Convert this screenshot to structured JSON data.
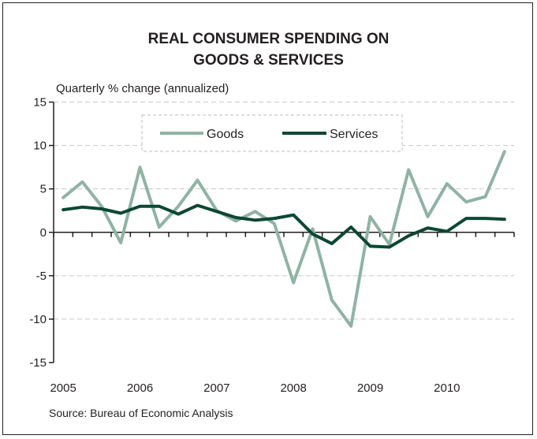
{
  "chart_data": {
    "type": "line",
    "title_lines": [
      "REAL CONSUMER SPENDING ON",
      "GOODS & SERVICES"
    ],
    "ylabel": "Quarterly % change (annualized)",
    "source": "Source: Bureau of Economic Analysis",
    "ylim": [
      -15,
      15
    ],
    "yticks": [
      -15,
      -10,
      -5,
      0,
      5,
      10,
      15
    ],
    "ytick_labels": [
      "-15",
      "-10",
      "-5",
      "0",
      "5",
      "10",
      "15"
    ],
    "year_labels": [
      "2005",
      "2006",
      "2007",
      "2008",
      "2009",
      "2010"
    ],
    "quarters": [
      "2005Q1",
      "2005Q2",
      "2005Q3",
      "2005Q4",
      "2006Q1",
      "2006Q2",
      "2006Q3",
      "2006Q4",
      "2007Q1",
      "2007Q2",
      "2007Q3",
      "2007Q4",
      "2008Q1",
      "2008Q2",
      "2008Q3",
      "2008Q4",
      "2009Q1",
      "2009Q2",
      "2009Q3",
      "2009Q4",
      "2010Q1",
      "2010Q2",
      "2010Q3",
      "2010Q4"
    ],
    "grid": "horizontal-dashed",
    "legend_position": "top-center",
    "series": [
      {
        "name": "Goods",
        "color": "#8fb3a4",
        "values": [
          4.0,
          5.8,
          3.0,
          -1.2,
          7.5,
          0.6,
          3.0,
          6.0,
          2.5,
          1.3,
          2.4,
          1.0,
          -5.8,
          0.4,
          -7.8,
          -10.8,
          1.8,
          -1.4,
          7.2,
          1.8,
          5.6,
          3.5,
          4.1,
          9.3
        ]
      },
      {
        "name": "Services",
        "color": "#0c4735",
        "values": [
          2.6,
          2.9,
          2.7,
          2.2,
          3.0,
          3.0,
          2.1,
          3.1,
          2.4,
          1.7,
          1.4,
          1.6,
          2.0,
          -0.2,
          -1.3,
          0.6,
          -1.6,
          -1.7,
          -0.4,
          0.5,
          0.1,
          1.6,
          1.6,
          1.5
        ]
      }
    ]
  }
}
